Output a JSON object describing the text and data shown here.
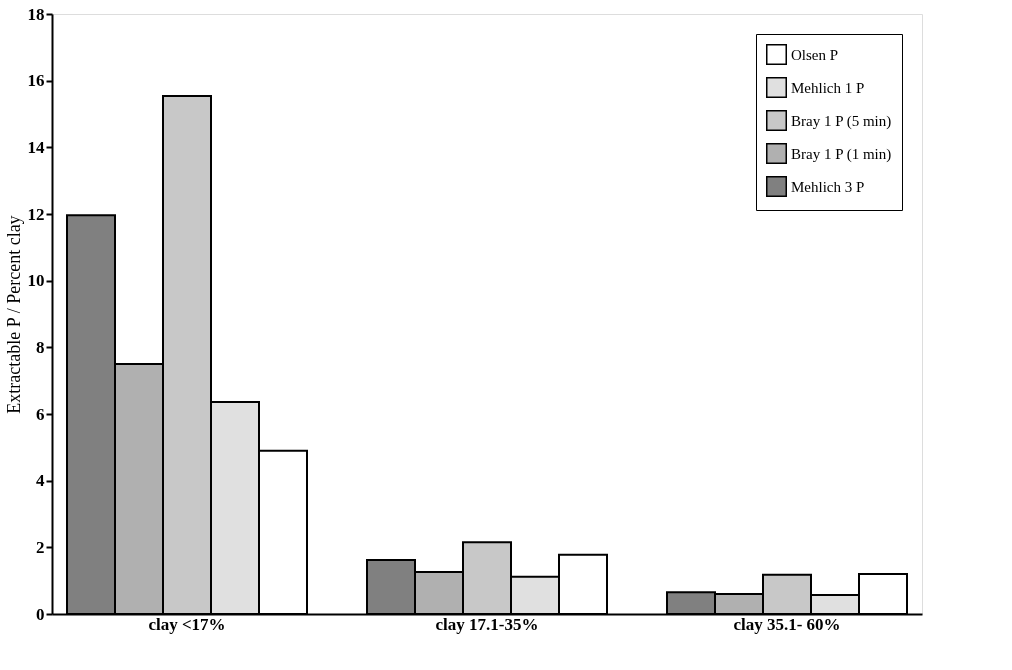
{
  "chart_data": {
    "type": "bar",
    "ylabel": "Extractable P / Percent clay",
    "categories": [
      "clay <17%",
      "clay 17.1-35%",
      "clay 35.1- 60%"
    ],
    "series": [
      {
        "name": "Mehlich 3 P",
        "color": "#808080",
        "values": [
          11.96,
          1.62,
          0.65
        ]
      },
      {
        "name": "Bray 1 P (1 min)",
        "color": "#b0b0b0",
        "values": [
          7.5,
          1.26,
          0.6
        ]
      },
      {
        "name": "Bray 1 P (5 min)",
        "color": "#c8c8c8",
        "values": [
          15.54,
          2.15,
          1.18
        ]
      },
      {
        "name": "Mehlich 1 P",
        "color": "#e0e0e0",
        "values": [
          6.36,
          1.12,
          0.57
        ]
      },
      {
        "name": "Olsen P",
        "color": "#ffffff",
        "values": [
          4.9,
          1.78,
          1.2
        ]
      }
    ],
    "ylim": [
      0,
      18
    ],
    "yticks": [
      0,
      2,
      4,
      6,
      8,
      10,
      12,
      14,
      16,
      18
    ],
    "grid": false,
    "legend": "top right"
  }
}
